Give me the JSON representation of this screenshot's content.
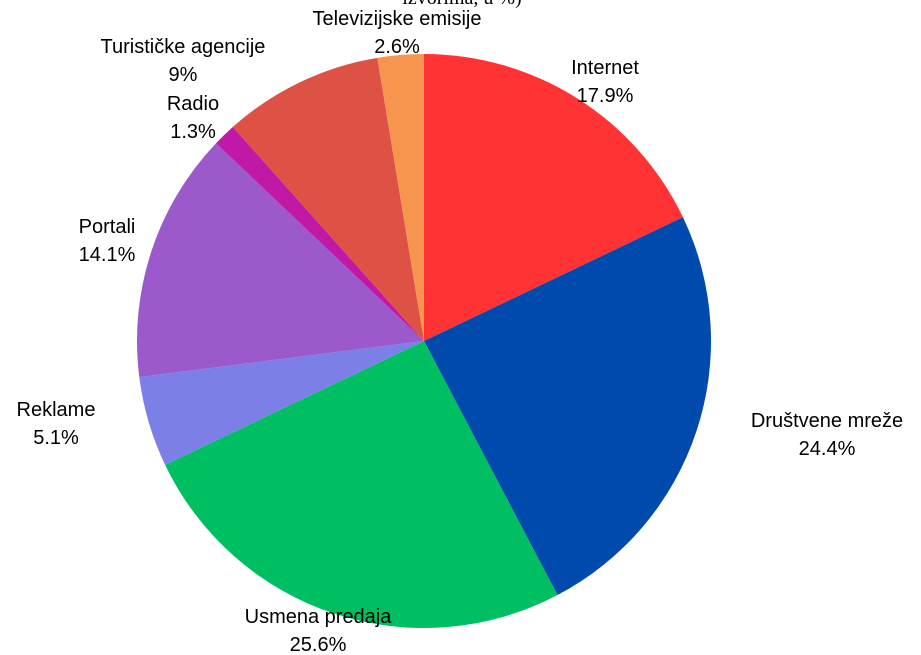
{
  "chart_data": {
    "type": "pie",
    "title": "izvorima, u %)",
    "start_angle": 0,
    "direction": "clockwise",
    "slices": [
      {
        "label": "Internet",
        "value": 17.9,
        "value_label": "17.9%",
        "color": "#FF3333"
      },
      {
        "label": "Društvene mreže",
        "value": 24.4,
        "value_label": "24.4%",
        "color": "#004AAD"
      },
      {
        "label": "Usmena predaja",
        "value": 25.6,
        "value_label": "25.6%",
        "color": "#00BF63"
      },
      {
        "label": "Reklame",
        "value": 5.1,
        "value_label": "5.1%",
        "color": "#7C7FE6"
      },
      {
        "label": "Portali",
        "value": 14.1,
        "value_label": "14.1%",
        "color": "#9B59CC"
      },
      {
        "label": "Radio",
        "value": 1.3,
        "value_label": "1.3%",
        "color": "#C218A6"
      },
      {
        "label": "Turističke agencije",
        "value": 9,
        "value_label": "9%",
        "color": "#DE5246"
      },
      {
        "label": "Televizijske emisije",
        "value": 2.6,
        "value_label": "2.6%",
        "color": "#F7954E"
      }
    ]
  }
}
